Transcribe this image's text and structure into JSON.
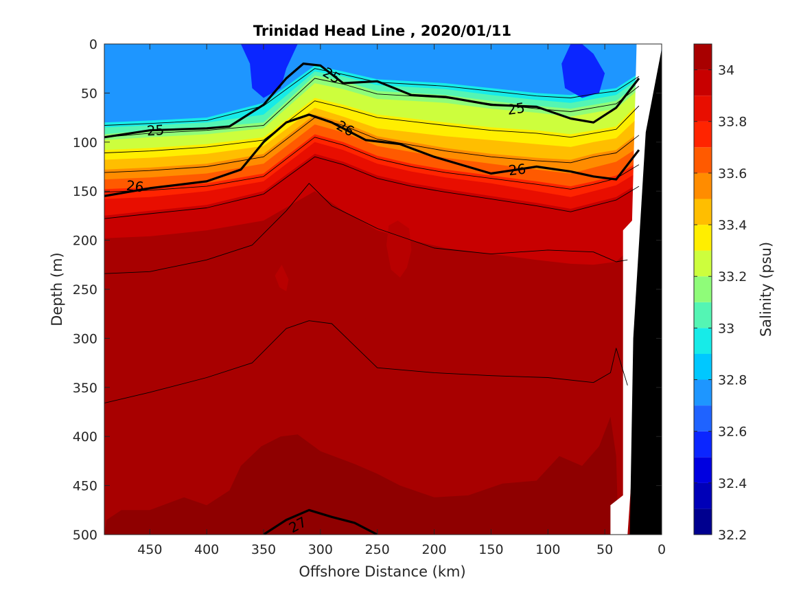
{
  "chart_data": {
    "type": "heatmap",
    "subtype": "filled-contour-section",
    "title": "Trinidad Head Line , 2020/01/11",
    "xlabel": "Offshore Distance (km)",
    "ylabel": "Depth (m)",
    "colorbar_label": "Salinity (psu)",
    "xlim": [
      490,
      0
    ],
    "ylim": [
      0,
      500
    ],
    "x_reversed": true,
    "y_reversed": true,
    "x_ticks": [
      450,
      400,
      350,
      300,
      250,
      200,
      150,
      100,
      50,
      0
    ],
    "y_ticks": [
      0,
      50,
      100,
      150,
      200,
      250,
      300,
      350,
      400,
      450,
      500
    ],
    "colorbar": {
      "range": [
        32.2,
        34.1
      ],
      "step": 0.1,
      "ticks": [
        32.2,
        32.4,
        32.6,
        32.8,
        33,
        33.2,
        33.4,
        33.6,
        33.8,
        34
      ],
      "colors": [
        "#00008f",
        "#0000b8",
        "#0000e0",
        "#0b26ff",
        "#1f63ff",
        "#1e96ff",
        "#00c8ff",
        "#17ebe8",
        "#54f5b4",
        "#8ffc79",
        "#cdfe3d",
        "#ffee00",
        "#ffbe00",
        "#ff8c00",
        "#ff5a00",
        "#ff2400",
        "#e80e00",
        "#c80000",
        "#a80000"
      ]
    },
    "salinity_layers": [
      {
        "level": 32.9,
        "depths": [
          80,
          78,
          75,
          60,
          22,
          28,
          36,
          38,
          40,
          45,
          50,
          52,
          48,
          45,
          30
        ]
      },
      {
        "level": 33.0,
        "depths": [
          85,
          83,
          80,
          72,
          28,
          33,
          42,
          44,
          46,
          52,
          57,
          60,
          56,
          52,
          35
        ]
      },
      {
        "level": 33.1,
        "depths": [
          92,
          88,
          85,
          80,
          32,
          38,
          48,
          50,
          52,
          58,
          63,
          66,
          62,
          58,
          40
        ]
      },
      {
        "level": 33.2,
        "depths": [
          98,
          95,
          92,
          86,
          40,
          46,
          56,
          58,
          60,
          66,
          70,
          74,
          70,
          66,
          46
        ]
      },
      {
        "level": 33.3,
        "depths": [
          108,
          106,
          102,
          95,
          55,
          62,
          72,
          76,
          80,
          85,
          88,
          92,
          88,
          84,
          60
        ]
      },
      {
        "level": 33.4,
        "depths": [
          118,
          116,
          112,
          104,
          65,
          74,
          86,
          90,
          94,
          98,
          102,
          105,
          100,
          96,
          74
        ]
      },
      {
        "level": 33.5,
        "depths": [
          128,
          126,
          122,
          112,
          72,
          80,
          94,
          100,
          106,
          112,
          116,
          118,
          112,
          108,
          90
        ]
      },
      {
        "level": 33.6,
        "depths": [
          138,
          136,
          132,
          122,
          82,
          90,
          104,
          110,
          116,
          122,
          128,
          132,
          126,
          120,
          105
        ]
      },
      {
        "level": 33.7,
        "depths": [
          148,
          146,
          142,
          132,
          92,
          100,
          114,
          122,
          128,
          134,
          140,
          145,
          140,
          134,
          120
        ]
      },
      {
        "level": 33.8,
        "depths": [
          158,
          156,
          150,
          140,
          100,
          108,
          122,
          130,
          136,
          142,
          150,
          156,
          150,
          144,
          130
        ]
      },
      {
        "level": 33.9,
        "depths": [
          175,
          170,
          164,
          150,
          112,
          120,
          134,
          142,
          148,
          155,
          162,
          168,
          162,
          156,
          142
        ]
      },
      {
        "level": 34.0,
        "depths": [
          198,
          196,
          190,
          180,
          150,
          170,
          190,
          200,
          208,
          214,
          220,
          224,
          225,
          222,
          200
        ]
      }
    ],
    "layer_x_km": [
      490,
      450,
      400,
      350,
      305,
      280,
      250,
      220,
      190,
      150,
      110,
      80,
      60,
      40,
      20
    ],
    "sigma_contours": [
      {
        "label": "25",
        "x": [
          490,
          450,
          400,
          380,
          350,
          330,
          315,
          300,
          280,
          250,
          220,
          190,
          150,
          110,
          80,
          60,
          40,
          20
        ],
        "y": [
          95,
          88,
          86,
          84,
          62,
          35,
          20,
          22,
          40,
          38,
          52,
          54,
          62,
          64,
          76,
          80,
          65,
          35
        ]
      },
      {
        "label": "26",
        "x": [
          490,
          450,
          400,
          370,
          350,
          330,
          310,
          290,
          260,
          230,
          200,
          150,
          110,
          80,
          60,
          40,
          20
        ],
        "y": [
          155,
          147,
          140,
          128,
          100,
          80,
          72,
          80,
          98,
          102,
          115,
          132,
          125,
          130,
          135,
          138,
          108
        ]
      },
      {
        "label": "27",
        "x": [
          350,
          330,
          310,
          290,
          270,
          250
        ],
        "y": [
          500,
          485,
          475,
          482,
          488,
          500
        ]
      }
    ],
    "thin_contour_depths_top": [
      55,
      65,
      75,
      100,
      108,
      117,
      126,
      135,
      176
    ],
    "deep_contours": [
      {
        "x": [
          490,
          450,
          400,
          360,
          330,
          310,
          290,
          250,
          200,
          150,
          100,
          60,
          40,
          30
        ],
        "y": [
          234,
          232,
          220,
          205,
          170,
          142,
          165,
          188,
          208,
          214,
          210,
          212,
          222,
          220
        ]
      },
      {
        "x": [
          490,
          450,
          400,
          360,
          330,
          310,
          290,
          250,
          200,
          150,
          100,
          60,
          45,
          40,
          30
        ],
        "y": [
          366,
          355,
          340,
          325,
          290,
          282,
          285,
          330,
          335,
          338,
          340,
          345,
          335,
          310,
          348
        ]
      }
    ],
    "topography_x_km": [
      20,
      0,
      0,
      3,
      8,
      12,
      14,
      17,
      20
    ]
  }
}
